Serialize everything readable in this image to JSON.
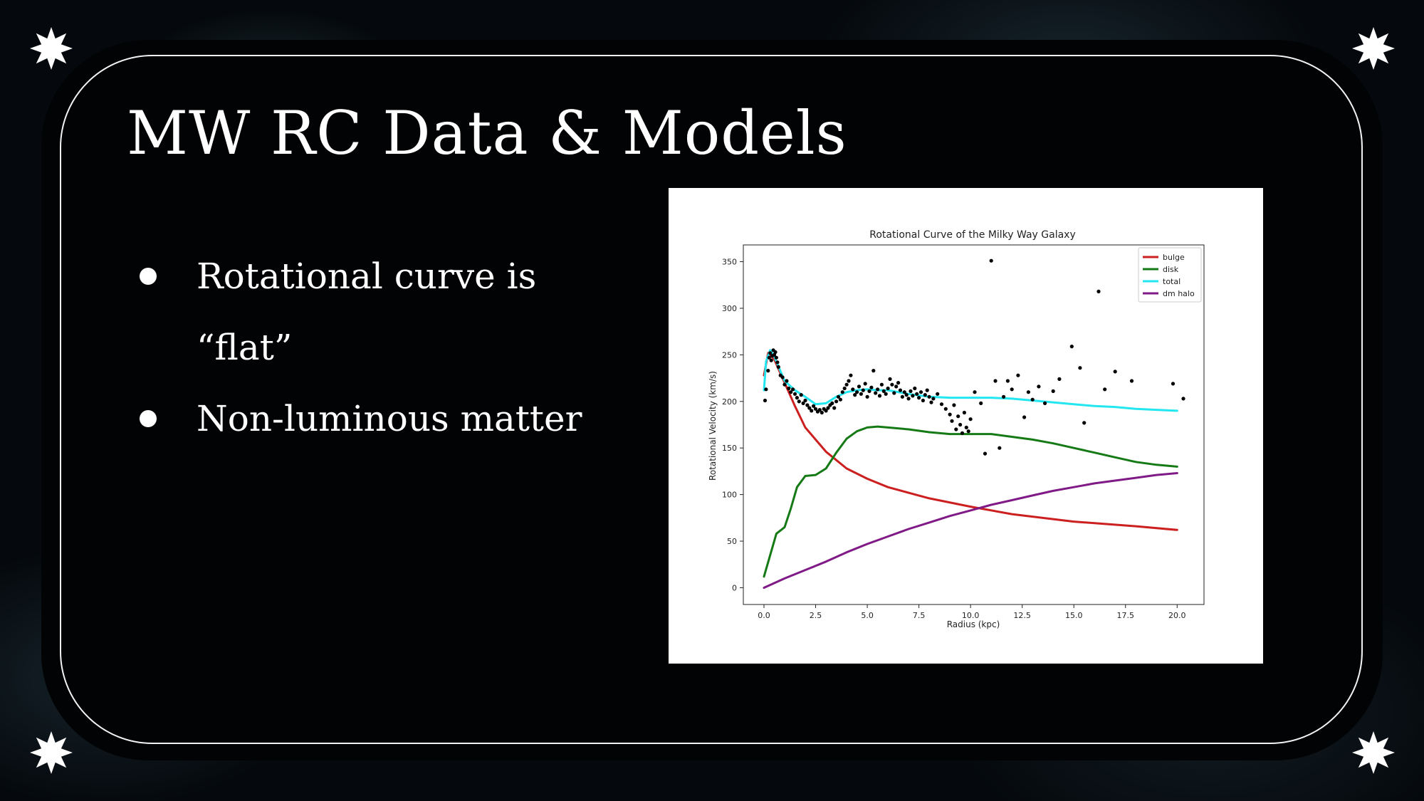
{
  "slide": {
    "title": "MW RC Data & Models",
    "bullets": [
      {
        "text": "Rotational curve is “flat”"
      },
      {
        "text": "Non-luminous matter"
      }
    ]
  },
  "colors": {
    "bulge": "#cc1f1f",
    "disk": "#157a15",
    "total": "#22e6f0",
    "dm_halo": "#7f1a86",
    "points": "#000000"
  },
  "chart_data": {
    "type": "line",
    "title": "Rotational Curve of the Milky Way Galaxy",
    "xlabel": "Radius (kpc)",
    "ylabel": "Rotational Velocity (km/s)",
    "xlim": [
      -1.0,
      21.3
    ],
    "ylim": [
      -18,
      368
    ],
    "xticks": [
      0.0,
      2.5,
      5.0,
      7.5,
      10.0,
      12.5,
      15.0,
      17.5,
      20.0
    ],
    "xtick_labels": [
      "0.0",
      "2.5",
      "5.0",
      "7.5",
      "10.0",
      "12.5",
      "15.0",
      "17.5",
      "20.0"
    ],
    "yticks": [
      0,
      50,
      100,
      150,
      200,
      250,
      300,
      350
    ],
    "ytick_labels": [
      "0",
      "50",
      "100",
      "150",
      "200",
      "250",
      "300",
      "350"
    ],
    "grid": false,
    "legend_position": "top-right",
    "series": [
      {
        "name": "bulge",
        "color_key": "bulge",
        "x": [
          0.0,
          0.2,
          0.5,
          1.0,
          1.5,
          2.0,
          3.0,
          4.0,
          5.0,
          6.0,
          8.0,
          10.0,
          12.0,
          15.0,
          18.0,
          20.0
        ],
        "y": [
          228,
          252,
          245,
          220,
          195,
          172,
          146,
          128,
          117,
          108,
          96,
          87,
          79,
          71,
          66,
          62
        ]
      },
      {
        "name": "disk",
        "color_key": "disk",
        "x": [
          0.0,
          0.3,
          0.6,
          1.0,
          1.3,
          1.6,
          2.0,
          2.5,
          3.0,
          3.5,
          4.0,
          4.5,
          5.0,
          5.5,
          6.0,
          7.0,
          8.0,
          9.0,
          10.0,
          11.0,
          12.0,
          13.0,
          14.0,
          15.0,
          16.0,
          17.0,
          18.0,
          19.0,
          20.0
        ],
        "y": [
          12,
          35,
          58,
          65,
          85,
          108,
          120,
          121,
          128,
          145,
          160,
          168,
          172,
          173,
          172,
          170,
          167,
          165,
          165,
          165,
          162,
          159,
          155,
          150,
          145,
          140,
          135,
          132,
          130
        ]
      },
      {
        "name": "total",
        "color_key": "total",
        "x": [
          0.0,
          0.1,
          0.3,
          0.5,
          1.0,
          1.5,
          2.0,
          2.5,
          3.0,
          3.5,
          4.0,
          4.5,
          5.0,
          5.5,
          6.0,
          7.0,
          8.0,
          9.0,
          10.0,
          11.0,
          12.0,
          13.0,
          14.0,
          15.0,
          16.0,
          17.0,
          18.0,
          19.0,
          20.0
        ],
        "y": [
          212,
          243,
          255,
          248,
          222,
          212,
          205,
          197,
          198,
          205,
          210,
          212,
          213,
          212,
          212,
          208,
          205,
          204,
          204,
          204,
          203,
          201,
          199,
          197,
          195,
          194,
          192,
          191,
          190
        ]
      },
      {
        "name": "dm halo",
        "color_key": "dm_halo",
        "x": [
          0.0,
          1.0,
          2.0,
          3.0,
          4.0,
          5.0,
          6.0,
          7.0,
          8.0,
          9.0,
          10.0,
          11.0,
          12.0,
          13.0,
          14.0,
          15.0,
          16.0,
          17.0,
          18.0,
          19.0,
          20.0
        ],
        "y": [
          0,
          10,
          19,
          28,
          38,
          47,
          55,
          63,
          70,
          77,
          83,
          89,
          94,
          99,
          104,
          108,
          112,
          115,
          118,
          121,
          123
        ]
      }
    ],
    "scatter": {
      "name": "data",
      "points": [
        [
          0.05,
          201
        ],
        [
          0.1,
          213
        ],
        [
          0.2,
          233
        ],
        [
          0.25,
          247
        ],
        [
          0.3,
          252
        ],
        [
          0.35,
          244
        ],
        [
          0.4,
          249
        ],
        [
          0.45,
          255
        ],
        [
          0.5,
          250
        ],
        [
          0.55,
          253
        ],
        [
          0.6,
          247
        ],
        [
          0.65,
          242
        ],
        [
          0.7,
          237
        ],
        [
          0.8,
          228
        ],
        [
          0.9,
          226
        ],
        [
          1.0,
          218
        ],
        [
          1.1,
          222
        ],
        [
          1.2,
          214
        ],
        [
          1.3,
          210
        ],
        [
          1.4,
          213
        ],
        [
          1.5,
          208
        ],
        [
          1.6,
          204
        ],
        [
          1.7,
          200
        ],
        [
          1.8,
          207
        ],
        [
          1.9,
          198
        ],
        [
          2.0,
          201
        ],
        [
          2.1,
          196
        ],
        [
          2.2,
          193
        ],
        [
          2.3,
          190
        ],
        [
          2.4,
          195
        ],
        [
          2.5,
          192
        ],
        [
          2.6,
          189
        ],
        [
          2.7,
          191
        ],
        [
          2.8,
          188
        ],
        [
          2.9,
          192
        ],
        [
          3.0,
          190
        ],
        [
          3.1,
          193
        ],
        [
          3.2,
          196
        ],
        [
          3.3,
          198
        ],
        [
          3.4,
          193
        ],
        [
          3.5,
          200
        ],
        [
          3.6,
          205
        ],
        [
          3.7,
          202
        ],
        [
          3.8,
          210
        ],
        [
          3.9,
          214
        ],
        [
          4.0,
          218
        ],
        [
          4.1,
          222
        ],
        [
          4.2,
          228
        ],
        [
          4.3,
          213
        ],
        [
          4.4,
          207
        ],
        [
          4.5,
          210
        ],
        [
          4.6,
          216
        ],
        [
          4.7,
          208
        ],
        [
          4.8,
          212
        ],
        [
          4.9,
          219
        ],
        [
          5.0,
          205
        ],
        [
          5.1,
          211
        ],
        [
          5.2,
          215
        ],
        [
          5.3,
          233
        ],
        [
          5.4,
          209
        ],
        [
          5.5,
          213
        ],
        [
          5.6,
          206
        ],
        [
          5.7,
          218
        ],
        [
          5.8,
          211
        ],
        [
          5.9,
          208
        ],
        [
          6.0,
          214
        ],
        [
          6.1,
          224
        ],
        [
          6.2,
          218
        ],
        [
          6.3,
          209
        ],
        [
          6.4,
          216
        ],
        [
          6.5,
          220
        ],
        [
          6.6,
          212
        ],
        [
          6.7,
          205
        ],
        [
          6.8,
          210
        ],
        [
          6.9,
          207
        ],
        [
          7.0,
          203
        ],
        [
          7.1,
          211
        ],
        [
          7.2,
          206
        ],
        [
          7.3,
          214
        ],
        [
          7.4,
          208
        ],
        [
          7.5,
          204
        ],
        [
          7.6,
          210
        ],
        [
          7.7,
          201
        ],
        [
          7.8,
          207
        ],
        [
          7.9,
          212
        ],
        [
          8.0,
          205
        ],
        [
          8.1,
          199
        ],
        [
          8.2,
          203
        ],
        [
          8.4,
          208
        ],
        [
          8.6,
          197
        ],
        [
          8.8,
          192
        ],
        [
          9.0,
          186
        ],
        [
          9.1,
          179
        ],
        [
          9.2,
          196
        ],
        [
          9.3,
          170
        ],
        [
          9.4,
          184
        ],
        [
          9.5,
          175
        ],
        [
          9.6,
          166
        ],
        [
          9.7,
          188
        ],
        [
          9.8,
          172
        ],
        [
          9.9,
          168
        ],
        [
          10.0,
          181
        ],
        [
          10.2,
          210
        ],
        [
          10.5,
          198
        ],
        [
          10.7,
          144
        ],
        [
          11.0,
          351
        ],
        [
          11.2,
          222
        ],
        [
          11.4,
          150
        ],
        [
          11.6,
          205
        ],
        [
          11.8,
          222
        ],
        [
          12.0,
          213
        ],
        [
          12.3,
          228
        ],
        [
          12.6,
          183
        ],
        [
          12.8,
          210
        ],
        [
          13.0,
          202
        ],
        [
          13.3,
          216
        ],
        [
          13.6,
          198
        ],
        [
          14.0,
          211
        ],
        [
          14.3,
          224
        ],
        [
          14.9,
          259
        ],
        [
          15.3,
          236
        ],
        [
          15.5,
          177
        ],
        [
          16.2,
          318
        ],
        [
          16.5,
          213
        ],
        [
          17.0,
          232
        ],
        [
          17.8,
          222
        ],
        [
          19.8,
          219
        ],
        [
          20.3,
          203
        ]
      ]
    }
  }
}
